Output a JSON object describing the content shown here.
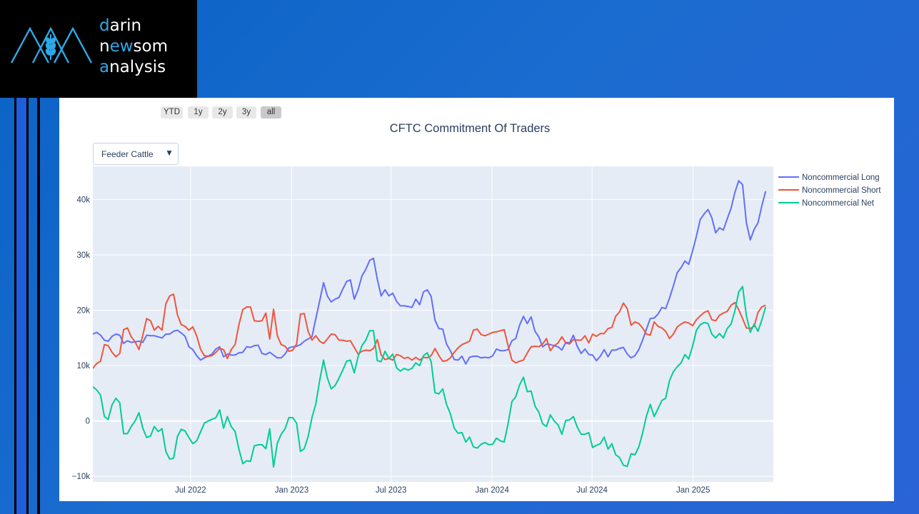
{
  "logo": {
    "line1": "darin",
    "line2": "newsom",
    "line3": "analysis",
    "mark_icon": "mountain-wheat-icon"
  },
  "range_selector": {
    "buttons": [
      "YTD",
      "1y",
      "2y",
      "3y",
      "all"
    ],
    "active": "all"
  },
  "dropdown": {
    "selected": "Feeder Cattle"
  },
  "colors": {
    "long": "#636efa",
    "short": "#ef553b",
    "net": "#00cc96",
    "plot_bg": "#e5ecf6",
    "grid": "#ffffff",
    "text": "#2a3f5f",
    "accent": "#2fa8e6"
  },
  "chart_data": {
    "type": "line",
    "title": "CFTC Commitment Of Traders",
    "xlabel": "",
    "ylabel": "",
    "x_ticks": [
      "Jul 2022",
      "Jan 2023",
      "Jul 2023",
      "Jan 2024",
      "Jul 2024",
      "Jan 2025"
    ],
    "y_ticks": [
      "−10k",
      "0",
      "10k",
      "20k",
      "30k",
      "40k"
    ],
    "ylim": [
      -11000,
      46000
    ],
    "xrange": [
      "2022-01-04",
      "2025-05-27"
    ],
    "x_interval": "weekly",
    "legend_position": "top-right",
    "grid": true,
    "series": [
      {
        "name": "Noncommercial Long",
        "values": [
          15700,
          16000,
          15500,
          14600,
          14400,
          15300,
          15700,
          15500,
          14000,
          14500,
          14200,
          14300,
          14400,
          14200,
          15500,
          15400,
          15400,
          15200,
          15000,
          15700,
          15700,
          16200,
          16400,
          15900,
          15300,
          13400,
          12900,
          11800,
          11000,
          11400,
          11700,
          12100,
          13000,
          13400,
          11600,
          12100,
          11900,
          11900,
          12300,
          12400,
          13400,
          13300,
          13600,
          13700,
          12200,
          12000,
          12400,
          11900,
          11400,
          11400,
          12100,
          13200,
          13400,
          13500,
          13800,
          14400,
          14800,
          15200,
          18500,
          21700,
          25000,
          22600,
          21500,
          22000,
          22300,
          23800,
          25200,
          25500,
          22000,
          23700,
          26200,
          27400,
          29000,
          29400,
          25600,
          22600,
          23700,
          22600,
          23100,
          21600,
          20800,
          20800,
          20700,
          20500,
          22000,
          21000,
          23300,
          23700,
          22500,
          18200,
          16700,
          16600,
          13900,
          12700,
          11100,
          11000,
          11700,
          10300,
          11500,
          11700,
          11700,
          11400,
          11500,
          11400,
          11800,
          13000,
          12700,
          12700,
          12900,
          14500,
          14900,
          17300,
          18900,
          17600,
          18800,
          16200,
          15200,
          13400,
          13900,
          13800,
          13600,
          13400,
          12800,
          14200,
          14100,
          15500,
          13500,
          12200,
          13000,
          12000,
          11900,
          10900,
          11700,
          12900,
          11600,
          12800,
          12800,
          13100,
          13300,
          12100,
          11400,
          11800,
          12900,
          14600,
          16600,
          18500,
          18600,
          19300,
          20500,
          20300,
          22200,
          24400,
          26800,
          27700,
          28900,
          28300,
          30700,
          33400,
          36400,
          37400,
          38200,
          36700,
          34000,
          34900,
          34500,
          36500,
          38400,
          41300,
          43400,
          42700,
          35800,
          32700,
          34600,
          35800,
          38800,
          41500
        ]
      },
      {
        "name": "Noncommercial Short",
        "values": [
          9500,
          10400,
          10800,
          13800,
          13600,
          12400,
          11600,
          12200,
          16500,
          16800,
          15200,
          14300,
          12900,
          15500,
          18500,
          18100,
          16400,
          17100,
          16400,
          21200,
          22600,
          22900,
          19200,
          17400,
          17100,
          16400,
          17000,
          15400,
          13000,
          11800,
          11700,
          11800,
          12400,
          13100,
          12900,
          11300,
          12900,
          13800,
          17400,
          20100,
          20600,
          20600,
          18100,
          18000,
          18100,
          19500,
          14800,
          20200,
          15400,
          13800,
          13500,
          12600,
          12800,
          13900,
          19300,
          19400,
          16200,
          14600,
          15400,
          14400,
          14000,
          14800,
          15700,
          15600,
          14600,
          14600,
          14400,
          14500,
          13300,
          12100,
          12600,
          12800,
          12700,
          13100,
          14700,
          11900,
          11100,
          11300,
          11000,
          12000,
          11800,
          11300,
          11500,
          11000,
          11500,
          11000,
          11500,
          11400,
          11800,
          13100,
          11800,
          10800,
          10900,
          11400,
          12400,
          13200,
          13800,
          14100,
          14400,
          16400,
          16600,
          15600,
          15400,
          15700,
          16000,
          16100,
          16300,
          16500,
          13600,
          11000,
          10500,
          10800,
          11000,
          12300,
          13400,
          13500,
          13400,
          13900,
          14900,
          12700,
          13600,
          14100,
          15200,
          14100,
          13900,
          14700,
          14600,
          14600,
          15400,
          14100,
          15700,
          15300,
          15800,
          15800,
          16700,
          16900,
          18900,
          19700,
          21300,
          20300,
          17300,
          17900,
          17600,
          16800,
          15700,
          15500,
          17900,
          17100,
          16800,
          16200,
          14900,
          15700,
          17000,
          17500,
          17900,
          17700,
          17200,
          18300,
          19000,
          19600,
          19900,
          18300,
          18100,
          19100,
          19500,
          19800,
          20900,
          21400,
          20100,
          18500,
          16800,
          16700,
          17100,
          19600,
          20600,
          20900
        ]
      },
      {
        "name": "Noncommercial Net",
        "values": [
          6200,
          5600,
          4700,
          800,
          300,
          2900,
          4100,
          3300,
          -2300,
          -2300,
          -1000,
          0,
          1500,
          -1300,
          -3000,
          -2700,
          -1000,
          -1900,
          -1400,
          -5500,
          -6900,
          -6700,
          -2800,
          -1500,
          -1800,
          -3000,
          -4100,
          -3600,
          -2000,
          -400,
          0,
          300,
          600,
          2000,
          -1300,
          800,
          -1000,
          -1900,
          -5100,
          -7700,
          -7200,
          -7300,
          -4500,
          -4300,
          -4300,
          -5000,
          -1400,
          -8300,
          -4000,
          -2400,
          -1400,
          600,
          600,
          -400,
          -5500,
          -5000,
          -2800,
          600,
          3100,
          7300,
          11000,
          7800,
          5800,
          6400,
          7700,
          9200,
          10800,
          11000,
          8700,
          11600,
          13600,
          14600,
          16300,
          16300,
          10900,
          10700,
          12600,
          11300,
          12100,
          9600,
          9000,
          9500,
          9200,
          9500,
          10500,
          10000,
          11800,
          12300,
          10700,
          5100,
          4900,
          5800,
          3000,
          1300,
          -1300,
          -2200,
          -2100,
          -3800,
          -2900,
          -4700,
          -4900,
          -4200,
          -3900,
          -4300,
          -4200,
          -3100,
          -3600,
          -3800,
          -500,
          3500,
          4400,
          6500,
          7900,
          5300,
          5400,
          2700,
          1600,
          -500,
          -1000,
          1100,
          0,
          -700,
          -2400,
          100,
          200,
          800,
          -1100,
          -2400,
          -2400,
          -2100,
          -4800,
          -4400,
          -4100,
          -2900,
          -5100,
          -4100,
          -6100,
          -6600,
          -8000,
          -8200,
          -5900,
          -6100,
          -4700,
          -2200,
          900,
          3000,
          800,
          2200,
          3700,
          4100,
          7300,
          8900,
          9800,
          10500,
          12000,
          11200,
          13500,
          16400,
          17400,
          17800,
          17600,
          15700,
          15000,
          15800,
          15000,
          16700,
          17500,
          19900,
          23300,
          24300,
          19000,
          16000,
          17500,
          16200,
          18200,
          20600
        ]
      }
    ]
  }
}
